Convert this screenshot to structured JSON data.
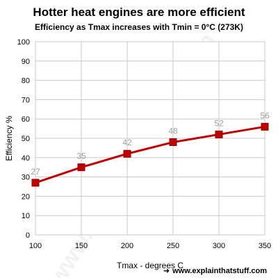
{
  "title": "Hotter heat engines are more efficient",
  "subtitle": "Efficiency as Tmax increases with Tmin = 0°C (273K)",
  "credit": "www.explainthatstuff.com",
  "watermark": "www.explainthatstuff.com",
  "colors": {
    "series": "#c00000",
    "grid": "#c8c8c8",
    "data_label": "#a0a0a0",
    "axis_text": "#000000"
  },
  "chart_data": {
    "type": "line",
    "title": "Hotter heat engines are more efficient",
    "subtitle": "Efficiency as Tmax increases with Tmin = 0°C (273K)",
    "xlabel": "Tmax - degrees C",
    "ylabel": "Efficiency %",
    "x": [
      100,
      150,
      200,
      250,
      300,
      350
    ],
    "series": [
      {
        "values": [
          27,
          35,
          42,
          48,
          52,
          56
        ]
      }
    ],
    "data_labels": [
      "27",
      "35",
      "42",
      "48",
      "52",
      "56"
    ],
    "xlim": [
      100,
      350
    ],
    "ylim": [
      0,
      100
    ],
    "xticks": [
      100,
      150,
      200,
      250,
      300,
      350
    ],
    "yticks": [
      0,
      10,
      20,
      30,
      40,
      50,
      60,
      70,
      80,
      90,
      100
    ],
    "grid": true,
    "legend": "none",
    "marker": "square"
  }
}
